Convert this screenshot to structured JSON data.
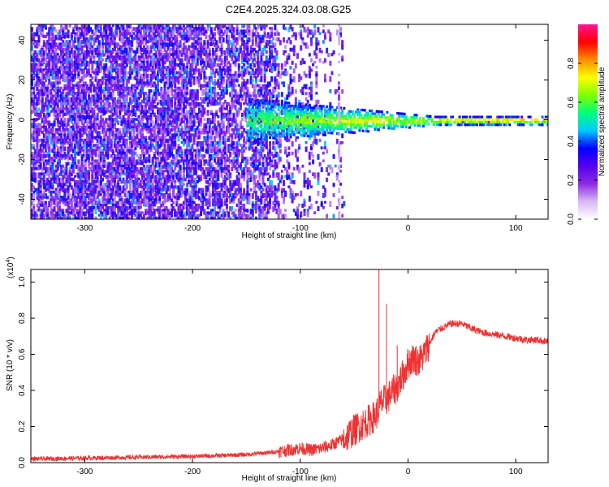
{
  "title": "C2E4.2025.324.03.08.G25",
  "chart_data": [
    {
      "type": "heatmap",
      "title": "C2E4.2025.324.03.08.G25",
      "xlabel": "Height of straight line (km)",
      "ylabel": "Frequency (Hz)",
      "xlim": [
        -350,
        130
      ],
      "ylim": [
        -50,
        48
      ],
      "xticks": [
        -300,
        -200,
        -100,
        0,
        100
      ],
      "yticks": [
        -40,
        -20,
        0,
        20,
        40
      ],
      "colorbar": {
        "label": "Normalized spectral amplitude",
        "range": [
          0.0,
          1.0
        ],
        "ticks": [
          0.0,
          0.2,
          0.4,
          0.6,
          0.8
        ],
        "colormap": [
          "#ffffff",
          "#d9b8f5",
          "#8a2be2",
          "#5500ee",
          "#0000ff",
          "#00c8ff",
          "#00ff7f",
          "#7fff00",
          "#ffff00",
          "#ff8c00",
          "#ff0000",
          "#ff1493"
        ]
      },
      "features": {
        "narrowband_center_hz": 0,
        "narrowband_onset_km": -150,
        "noise_extent_km": [
          -350,
          -60
        ]
      }
    },
    {
      "type": "line",
      "xlabel": "Height of straight line (km)",
      "ylabel": "SNR (10 * v/v)",
      "scale_label": "(x10",
      "scale_exponent": "4",
      "xlim": [
        -350,
        130
      ],
      "ylim": [
        0,
        1.07
      ],
      "xticks": [
        -300,
        -200,
        -100,
        0,
        100
      ],
      "yticks": [
        0.0,
        0.2,
        0.4,
        0.6,
        0.8,
        1.0
      ],
      "series": [
        {
          "name": "SNR",
          "color": "#ee3333",
          "x": [
            -350,
            -300,
            -250,
            -200,
            -170,
            -150,
            -130,
            -110,
            -100,
            -90,
            -80,
            -70,
            -60,
            -50,
            -40,
            -30,
            -25,
            -20,
            -15,
            -10,
            -5,
            0,
            5,
            10,
            15,
            20,
            25,
            30,
            40,
            50,
            60,
            70,
            80,
            90,
            100,
            110,
            120,
            130
          ],
          "values": [
            0.02,
            0.025,
            0.03,
            0.035,
            0.04,
            0.045,
            0.055,
            0.07,
            0.08,
            0.07,
            0.08,
            0.1,
            0.13,
            0.18,
            0.22,
            0.26,
            0.33,
            0.35,
            0.39,
            0.42,
            0.48,
            0.55,
            0.58,
            0.56,
            0.6,
            0.66,
            0.72,
            0.74,
            0.77,
            0.77,
            0.74,
            0.72,
            0.71,
            0.7,
            0.69,
            0.68,
            0.68,
            0.67
          ]
        }
      ],
      "spikes": [
        {
          "x": -27,
          "value": 1.07
        },
        {
          "x": -20,
          "value": 0.88
        },
        {
          "x": -10,
          "value": 0.65
        }
      ]
    }
  ]
}
